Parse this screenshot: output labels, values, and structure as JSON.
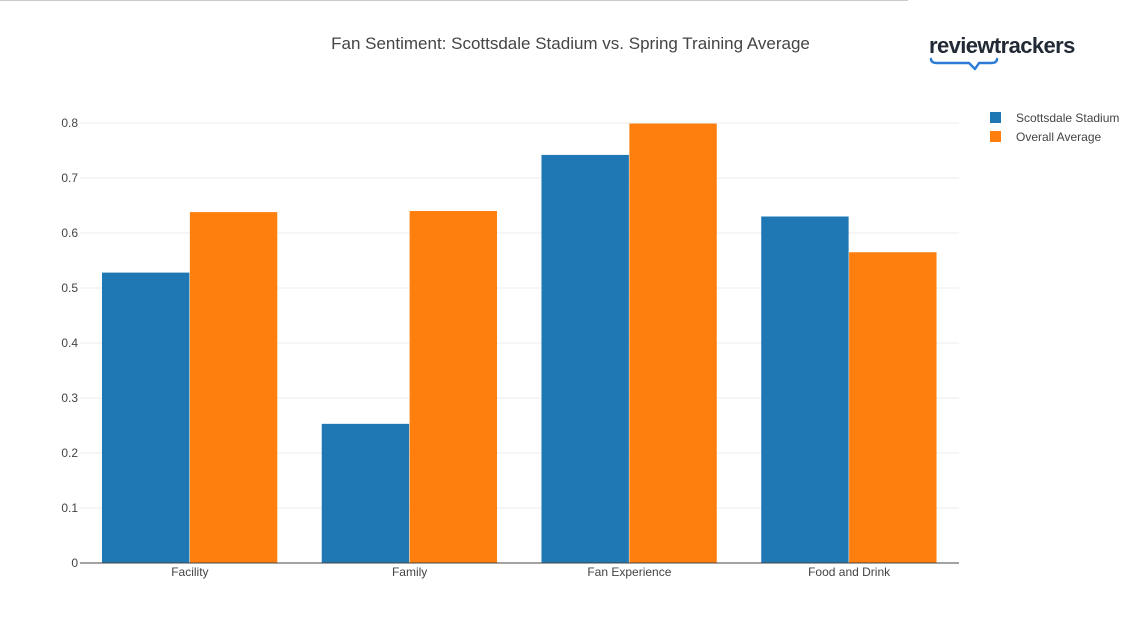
{
  "logo": {
    "text": "reviewtrackers"
  },
  "colors": {
    "series1": "#1f77b4",
    "series2": "#ff7f0e",
    "grid": "#eeeeee",
    "axis": "#444444"
  },
  "chart_data": {
    "type": "bar",
    "title": "Fan Sentiment: Scottsdale Stadium vs. Spring Training Average",
    "xlabel": "",
    "ylabel": "",
    "categories": [
      "Facility",
      "Family",
      "Fan Experience",
      "Food and Drink"
    ],
    "series": [
      {
        "name": "Scottsdale Stadium",
        "values": [
          0.528,
          0.253,
          0.742,
          0.63
        ]
      },
      {
        "name": "Overall Average",
        "values": [
          0.638,
          0.64,
          0.799,
          0.565
        ]
      }
    ],
    "ylim": [
      0,
      0.8
    ],
    "yticks": [
      "0",
      "0.1",
      "0.2",
      "0.3",
      "0.4",
      "0.5",
      "0.6",
      "0.7",
      "0.8"
    ],
    "grid": true,
    "legend": "top-right"
  }
}
